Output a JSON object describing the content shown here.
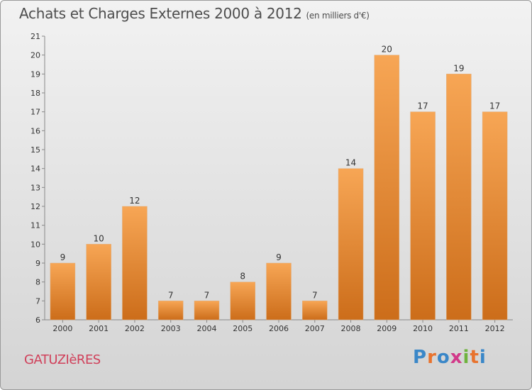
{
  "title": "Achats et Charges Externes 2000 à 2012",
  "subtitle": "(en milliers d'€)",
  "commune": "GATUZIèRES",
  "logo": {
    "letters": [
      "P",
      "r",
      "o",
      "x",
      "i",
      "t",
      "i"
    ],
    "colors": [
      "#3a87c8",
      "#e8732e",
      "#3a87c8",
      "#d23a8a",
      "#6fb33e",
      "#e8732e",
      "#3a87c8"
    ]
  },
  "colors": {
    "bar_top": "#f7a655",
    "bar_bottom": "#cc6d1a",
    "title": "#4d4d4d",
    "commune": "#d0405a"
  },
  "chart_data": {
    "type": "bar",
    "title": "Achats et Charges Externes 2000 à 2012",
    "subtitle": "(en milliers d'€)",
    "categories": [
      "2000",
      "2001",
      "2002",
      "2003",
      "2004",
      "2005",
      "2006",
      "2007",
      "2008",
      "2009",
      "2010",
      "2011",
      "2012"
    ],
    "values": [
      9,
      10,
      12,
      7,
      7,
      8,
      9,
      7,
      14,
      20,
      17,
      19,
      17
    ],
    "xlabel": "",
    "ylabel": "",
    "ylim": [
      6,
      21
    ],
    "yticks": [
      6,
      7,
      8,
      9,
      10,
      11,
      12,
      13,
      14,
      15,
      16,
      17,
      18,
      19,
      20,
      21
    ],
    "grid": false,
    "legend": "none"
  }
}
